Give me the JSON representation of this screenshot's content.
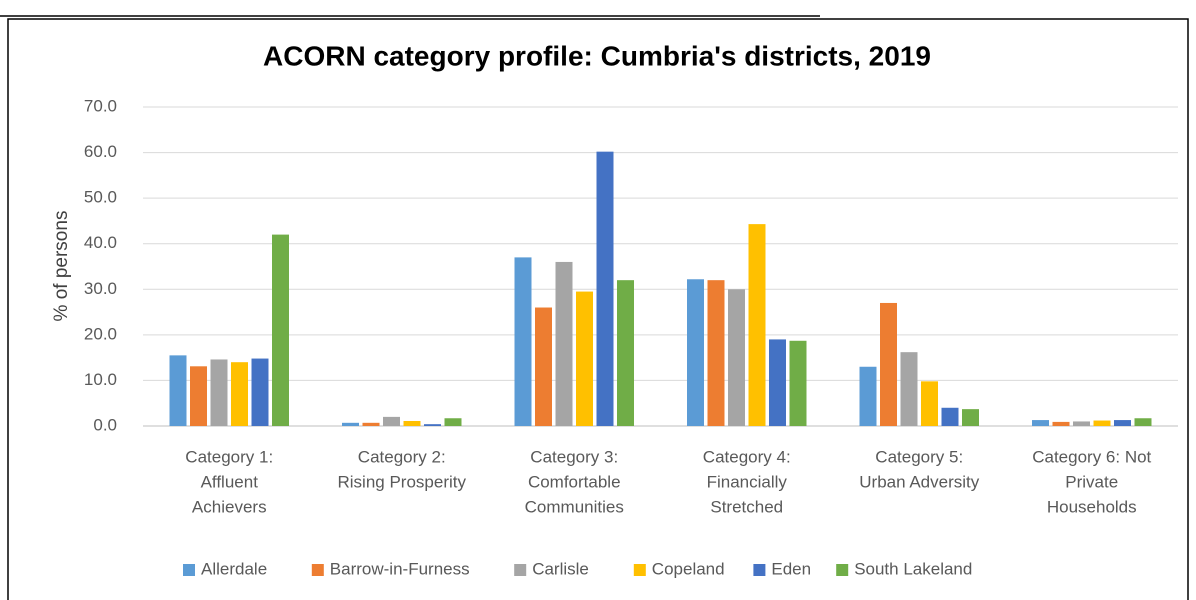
{
  "chart_data": {
    "type": "bar",
    "title": "ACORN category profile: Cumbria's districts, 2019",
    "y_label": "% of persons",
    "categories": [
      [
        "Category 1:",
        "Affluent",
        "Achievers"
      ],
      [
        "Category 2:",
        "Rising Prosperity"
      ],
      [
        "Category 3:",
        "Comfortable",
        "Communities"
      ],
      [
        "Category 4:",
        "Financially",
        "Stretched"
      ],
      [
        "Category 5:",
        "Urban Adversity"
      ],
      [
        "Category 6: Not",
        "Private",
        "Households"
      ]
    ],
    "series": [
      {
        "name": "Allerdale",
        "color": "#5b9bd5",
        "values": [
          15.5,
          0.7,
          37.0,
          32.2,
          13.0,
          1.3
        ]
      },
      {
        "name": "Barrow-in-Furness",
        "color": "#ed7d31",
        "values": [
          13.1,
          0.7,
          26.0,
          32.0,
          27.0,
          0.9
        ]
      },
      {
        "name": "Carlisle",
        "color": "#a5a5a5",
        "values": [
          14.6,
          2.0,
          36.0,
          30.0,
          16.2,
          1.0
        ]
      },
      {
        "name": "Copeland",
        "color": "#ffc000",
        "values": [
          14.0,
          1.1,
          29.5,
          44.3,
          9.8,
          1.2
        ]
      },
      {
        "name": "Eden",
        "color": "#4472c4",
        "values": [
          14.8,
          0.4,
          60.2,
          19.0,
          4.0,
          1.3
        ]
      },
      {
        "name": "South Lakeland",
        "color": "#70ad47",
        "values": [
          42.0,
          1.7,
          32.0,
          18.7,
          3.7,
          1.7
        ]
      }
    ],
    "ylim": [
      0,
      70
    ],
    "yticks": [
      {
        "value": 0,
        "label": "0.0"
      },
      {
        "value": 10,
        "label": "10.0"
      },
      {
        "value": 20,
        "label": "20.0"
      },
      {
        "value": 30,
        "label": "30.0"
      },
      {
        "value": 40,
        "label": "40.0"
      },
      {
        "value": 50,
        "label": "50.0"
      },
      {
        "value": 60,
        "label": "60.0"
      },
      {
        "value": 70,
        "label": "70.0"
      }
    ],
    "grid": true,
    "legend": "bottom"
  }
}
